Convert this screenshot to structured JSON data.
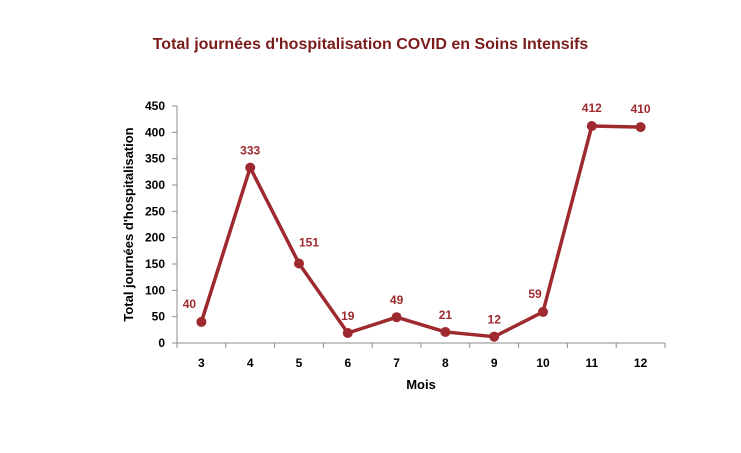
{
  "chart_data": {
    "type": "line",
    "title": "Total journées d'hospitalisation COVID en Soins Intensifs",
    "xlabel": "Mois",
    "ylabel": "Total journées d'hospitalisation",
    "categories": [
      "3",
      "4",
      "5",
      "6",
      "7",
      "8",
      "9",
      "10",
      "11",
      "12"
    ],
    "series": [
      {
        "values": [
          40,
          333,
          151,
          19,
          49,
          21,
          12,
          59,
          412,
          410
        ]
      }
    ],
    "ylim": [
      0,
      450
    ],
    "yticks": [
      0,
      50,
      100,
      150,
      200,
      250,
      300,
      350,
      400,
      450
    ],
    "grid": false,
    "legend": "none",
    "colors": {
      "line": "#9e2a2f",
      "title": "#7b1c1c",
      "labels": "#9e2a2f"
    }
  }
}
